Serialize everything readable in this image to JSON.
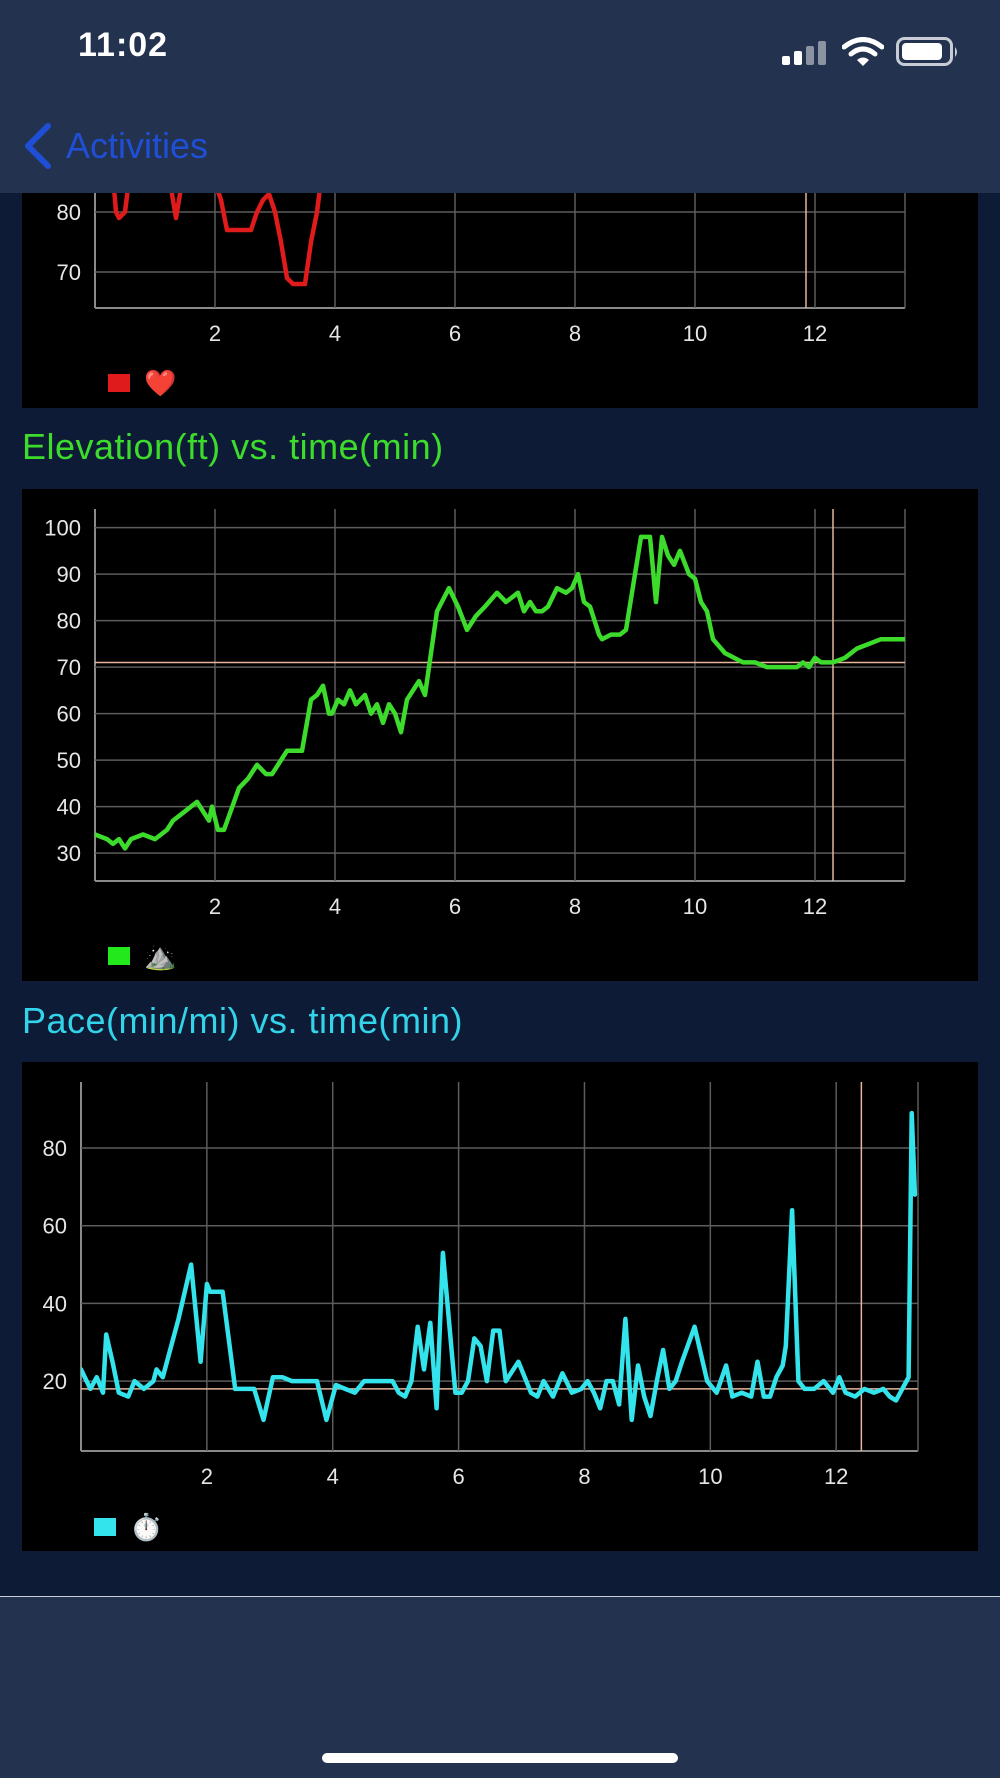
{
  "status_bar": {
    "time": "11:02",
    "icons": [
      "cellular-signal-icon",
      "wifi-icon",
      "battery-icon"
    ]
  },
  "nav": {
    "back_label": "Activities",
    "back_icon": "chevron-left-icon",
    "color": "#1f4fd6"
  },
  "sections": {
    "heart": {
      "title": "",
      "legend_icon": "heart-icon",
      "legend_emoji": "❤️"
    },
    "elevation": {
      "title": "Elevation(ft) vs. time(min)",
      "legend_icon": "mountain-icon",
      "legend_emoji": "⛰️"
    },
    "pace": {
      "title": "Pace(min/mi) vs. time(min)",
      "legend_icon": "stopwatch-icon",
      "legend_emoji": "⏱️"
    }
  },
  "chart_data": [
    {
      "type": "line",
      "title": "",
      "xlabel": "",
      "ylabel": "",
      "xlim": [
        0,
        13.5
      ],
      "ylim": [
        64,
        97
      ],
      "x_ticks": [
        2,
        4,
        6,
        8,
        10,
        12
      ],
      "y_ticks": [
        70,
        80
      ],
      "grid": true,
      "legend": "bottom-left",
      "color": "#e01b1b",
      "reference_x": 11.85,
      "series": [
        {
          "name": "",
          "x": [
            0.25,
            0.3,
            0.35,
            0.4,
            0.5,
            0.6,
            1.2,
            1.3,
            1.35,
            1.4,
            1.5,
            1.9,
            2.1,
            2.2,
            2.4,
            2.6,
            2.7,
            2.8,
            2.9,
            3.0,
            3.1,
            3.2,
            3.3,
            3.4,
            3.5,
            3.6,
            3.7,
            3.8
          ],
          "y": [
            88,
            86,
            80,
            79,
            80,
            88,
            88,
            82,
            79,
            82,
            88,
            88,
            82,
            77,
            77,
            77,
            80,
            82,
            83,
            80,
            75,
            69,
            68,
            68,
            68,
            75,
            80,
            88
          ]
        }
      ]
    },
    {
      "type": "line",
      "title": "Elevation(ft) vs. time(min)",
      "xlabel": "",
      "ylabel": "",
      "xlim": [
        0,
        13.5
      ],
      "ylim": [
        24,
        104
      ],
      "x_ticks": [
        2,
        4,
        6,
        8,
        10,
        12
      ],
      "y_ticks": [
        30,
        40,
        50,
        60,
        70,
        80,
        90,
        100
      ],
      "grid": true,
      "legend": "bottom-left",
      "color": "#3ddc2c",
      "reference_x": 12.3,
      "reference_y": 71,
      "series": [
        {
          "name": "",
          "x": [
            0,
            0.2,
            0.3,
            0.4,
            0.5,
            0.6,
            0.8,
            1.0,
            1.2,
            1.3,
            1.5,
            1.7,
            1.9,
            1.95,
            2.05,
            2.15,
            2.4,
            2.55,
            2.7,
            2.85,
            2.95,
            3.05,
            3.2,
            3.3,
            3.45,
            3.6,
            3.7,
            3.8,
            3.9,
            3.95,
            4.05,
            4.15,
            4.25,
            4.35,
            4.5,
            4.6,
            4.7,
            4.8,
            4.9,
            5.0,
            5.1,
            5.2,
            5.3,
            5.4,
            5.5,
            5.6,
            5.7,
            5.9,
            6.05,
            6.2,
            6.35,
            6.5,
            6.7,
            6.85,
            6.95,
            7.05,
            7.15,
            7.25,
            7.35,
            7.45,
            7.55,
            7.7,
            7.85,
            7.95,
            8.05,
            8.15,
            8.25,
            8.4,
            8.45,
            8.6,
            8.75,
            8.85,
            9.0,
            9.1,
            9.25,
            9.35,
            9.45,
            9.55,
            9.65,
            9.75,
            9.9,
            10.0,
            10.1,
            10.2,
            10.3,
            10.5,
            10.8,
            11.0,
            11.2,
            11.5,
            11.7,
            11.8,
            11.9,
            12.0,
            12.1,
            12.3,
            12.5,
            12.7,
            12.9,
            13.1,
            13.3,
            13.5
          ],
          "y": [
            34,
            33,
            32,
            33,
            31,
            33,
            34,
            33,
            35,
            37,
            39,
            41,
            37,
            40,
            35,
            35,
            44,
            46,
            49,
            47,
            47,
            49,
            52,
            52,
            52,
            63,
            64,
            66,
            60,
            60,
            63,
            62,
            65,
            62,
            64,
            60,
            62,
            58,
            62,
            60,
            56,
            63,
            65,
            67,
            64,
            73,
            82,
            87,
            83,
            78,
            81,
            83,
            86,
            84,
            85,
            86,
            82,
            84,
            82,
            82,
            83,
            87,
            86,
            87,
            90,
            84,
            83,
            77,
            76,
            77,
            77,
            78,
            90,
            98,
            98,
            84,
            98,
            94,
            92,
            95,
            90,
            89,
            84,
            82,
            76,
            73,
            71,
            71,
            70,
            70,
            70,
            71,
            70,
            72,
            71,
            71,
            72,
            74,
            75,
            76,
            76,
            76
          ]
        }
      ]
    },
    {
      "type": "line",
      "title": "Pace(min/mi) vs. time(min)",
      "xlabel": "",
      "ylabel": "",
      "xlim": [
        0,
        13.3
      ],
      "ylim": [
        2,
        97
      ],
      "x_ticks": [
        2,
        4,
        6,
        8,
        10,
        12
      ],
      "y_ticks": [
        20,
        40,
        60,
        80
      ],
      "grid": true,
      "legend": "bottom-left",
      "color": "#33e4ec",
      "reference_x": 12.4,
      "reference_y": 18,
      "series": [
        {
          "name": "",
          "x": [
            0,
            0.15,
            0.25,
            0.35,
            0.4,
            0.5,
            0.6,
            0.75,
            0.85,
            1.0,
            1.15,
            1.2,
            1.3,
            1.55,
            1.75,
            1.9,
            2.0,
            2.05,
            2.25,
            2.45,
            2.55,
            2.75,
            2.9,
            3.05,
            3.2,
            3.35,
            3.45,
            3.6,
            3.75,
            3.9,
            4.05,
            4.2,
            4.35,
            4.5,
            4.65,
            4.8,
            4.95,
            5.05,
            5.15,
            5.25,
            5.35,
            5.45,
            5.55,
            5.65,
            5.75,
            5.95,
            6.05,
            6.15,
            6.25,
            6.35,
            6.45,
            6.55,
            6.65,
            6.75,
            6.95,
            7.15,
            7.25,
            7.35,
            7.5,
            7.65,
            7.8,
            7.95,
            8.05,
            8.15,
            8.25,
            8.35,
            8.45,
            8.55,
            8.65,
            8.75,
            8.85,
            8.95,
            9.05,
            9.15,
            9.25,
            9.35,
            9.45,
            9.55,
            9.75,
            9.95,
            10.1,
            10.25,
            10.35,
            10.5,
            10.65,
            10.75,
            10.85,
            10.95,
            11.05,
            11.15,
            11.2,
            11.3,
            11.4,
            11.5,
            11.65,
            11.8,
            11.95,
            12.05,
            12.15,
            12.3,
            12.45,
            12.6,
            12.75,
            12.85,
            12.95,
            13.05,
            13.15,
            13.2,
            13.25
          ],
          "y": [
            23,
            18,
            21,
            17,
            32,
            25,
            17,
            16,
            20,
            18,
            20,
            23,
            21,
            36,
            50,
            25,
            45,
            43,
            43,
            18,
            18,
            18,
            10,
            21,
            21,
            20,
            20,
            20,
            20,
            10,
            19,
            18,
            17,
            20,
            20,
            20,
            20,
            17,
            16,
            20,
            34,
            23,
            35,
            13,
            53,
            17,
            17,
            20,
            31,
            29,
            20,
            33,
            33,
            20,
            25,
            17,
            16,
            20,
            16,
            22,
            17,
            18,
            20,
            17,
            13,
            20,
            20,
            14,
            36,
            10,
            24,
            16,
            11,
            20,
            28,
            18,
            20,
            25,
            34,
            20,
            17,
            24,
            16,
            17,
            16,
            25,
            16,
            16,
            21,
            24,
            29,
            64,
            20,
            18,
            18,
            20,
            17,
            21,
            17,
            16,
            18,
            17,
            18,
            16,
            15,
            18,
            21,
            89,
            68
          ]
        }
      ]
    }
  ]
}
